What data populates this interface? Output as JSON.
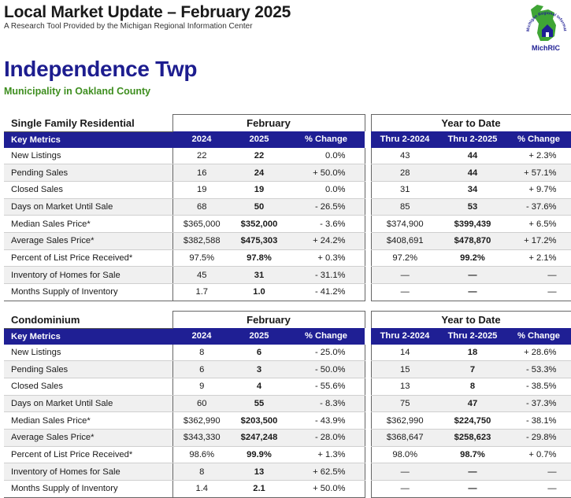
{
  "header": {
    "title": "Local Market Update – February 2025",
    "subtitle": "A Research Tool Provided by the Michigan Regional Information Center"
  },
  "logo": {
    "name": "MichRIC",
    "ring_text": "Michigan Regional Information Center",
    "colors": {
      "map": "#3fa535",
      "house": "#1f1f94",
      "text": "#1f1f94"
    }
  },
  "municipality": {
    "name": "Independence Twp",
    "subtitle": "Municipality in Oakland County"
  },
  "colors": {
    "header_bg": "#1f1f94",
    "alt_row": "#f0f0f0",
    "title": "#1d1d8f",
    "subtitle": "#3e8e1f"
  },
  "sections": [
    {
      "title": "Single Family Residential",
      "group_month": "February",
      "group_ytd": "Year to Date",
      "columns": [
        "Key Metrics",
        "2024",
        "2025",
        "% Change",
        "Thru 2-2024",
        "Thru 2-2025",
        "% Change"
      ],
      "rows": [
        [
          "New Listings",
          "22",
          "22",
          "0.0%",
          "43",
          "44",
          "+ 2.3%"
        ],
        [
          "Pending Sales",
          "16",
          "24",
          "+ 50.0%",
          "28",
          "44",
          "+ 57.1%"
        ],
        [
          "Closed Sales",
          "19",
          "19",
          "0.0%",
          "31",
          "34",
          "+ 9.7%"
        ],
        [
          "Days on Market Until Sale",
          "68",
          "50",
          "- 26.5%",
          "85",
          "53",
          "- 37.6%"
        ],
        [
          "Median Sales Price*",
          "$365,000",
          "$352,000",
          "- 3.6%",
          "$374,900",
          "$399,439",
          "+ 6.5%"
        ],
        [
          "Average Sales Price*",
          "$382,588",
          "$475,303",
          "+ 24.2%",
          "$408,691",
          "$478,870",
          "+ 17.2%"
        ],
        [
          "Percent of List Price Received*",
          "97.5%",
          "97.8%",
          "+ 0.3%",
          "97.2%",
          "99.2%",
          "+ 2.1%"
        ],
        [
          "Inventory of Homes for Sale",
          "45",
          "31",
          "- 31.1%",
          "—",
          "—",
          "—"
        ],
        [
          "Months Supply of Inventory",
          "1.7",
          "1.0",
          "- 41.2%",
          "—",
          "—",
          "—"
        ]
      ]
    },
    {
      "title": "Condominium",
      "group_month": "February",
      "group_ytd": "Year to Date",
      "columns": [
        "Key Metrics",
        "2024",
        "2025",
        "% Change",
        "Thru 2-2024",
        "Thru 2-2025",
        "% Change"
      ],
      "rows": [
        [
          "New Listings",
          "8",
          "6",
          "- 25.0%",
          "14",
          "18",
          "+ 28.6%"
        ],
        [
          "Pending Sales",
          "6",
          "3",
          "- 50.0%",
          "15",
          "7",
          "- 53.3%"
        ],
        [
          "Closed Sales",
          "9",
          "4",
          "- 55.6%",
          "13",
          "8",
          "- 38.5%"
        ],
        [
          "Days on Market Until Sale",
          "60",
          "55",
          "- 8.3%",
          "75",
          "47",
          "- 37.3%"
        ],
        [
          "Median Sales Price*",
          "$362,990",
          "$203,500",
          "- 43.9%",
          "$362,990",
          "$224,750",
          "- 38.1%"
        ],
        [
          "Average Sales Price*",
          "$343,330",
          "$247,248",
          "- 28.0%",
          "$368,647",
          "$258,623",
          "- 29.8%"
        ],
        [
          "Percent of List Price Received*",
          "98.6%",
          "99.9%",
          "+ 1.3%",
          "98.0%",
          "98.7%",
          "+ 0.7%"
        ],
        [
          "Inventory of Homes for Sale",
          "8",
          "13",
          "+ 62.5%",
          "—",
          "—",
          "—"
        ],
        [
          "Months Supply of Inventory",
          "1.4",
          "2.1",
          "+ 50.0%",
          "—",
          "—",
          "—"
        ]
      ]
    }
  ]
}
